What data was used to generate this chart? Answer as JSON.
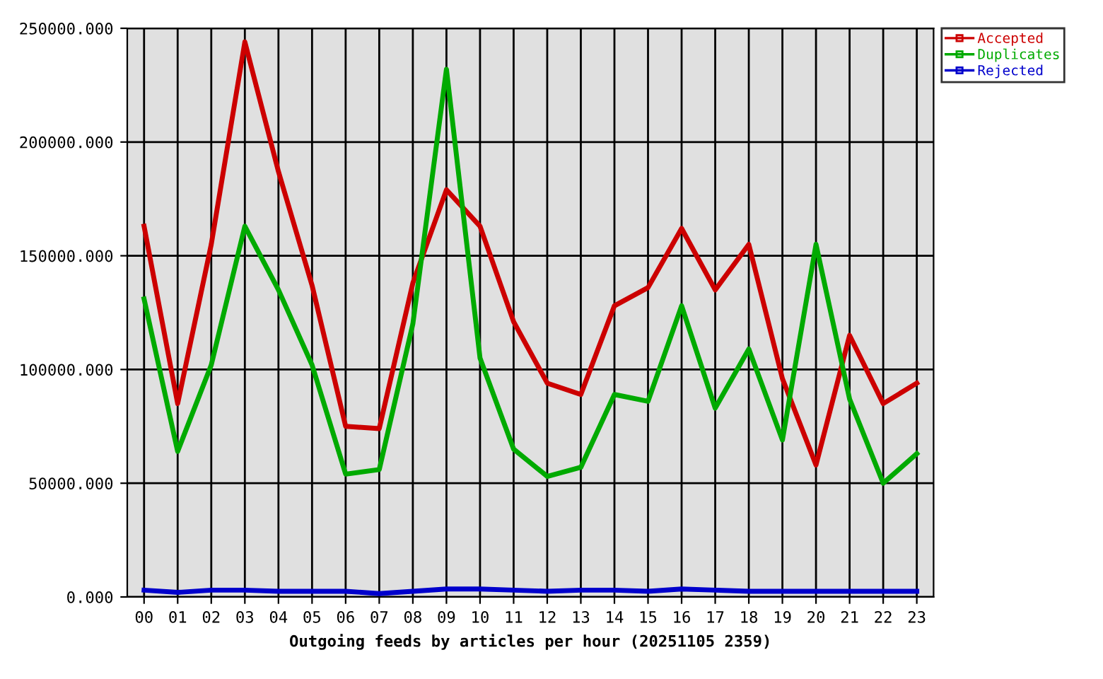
{
  "chart_data": {
    "type": "line",
    "xlabel": "Outgoing feeds by articles per hour (20251105 2359)",
    "categories": [
      "00",
      "01",
      "02",
      "03",
      "04",
      "05",
      "06",
      "07",
      "08",
      "09",
      "10",
      "11",
      "12",
      "13",
      "14",
      "15",
      "16",
      "17",
      "18",
      "19",
      "20",
      "21",
      "22",
      "23"
    ],
    "series": [
      {
        "name": "Accepted",
        "color": "#cc0000",
        "values": [
          163000,
          85000,
          155000,
          244000,
          187000,
          137000,
          75000,
          74000,
          138000,
          179000,
          163000,
          121000,
          94000,
          89000,
          128000,
          136000,
          162000,
          135000,
          155000,
          96000,
          58000,
          115000,
          85000,
          94000
        ]
      },
      {
        "name": "Duplicates",
        "color": "#00aa00",
        "values": [
          131000,
          64000,
          102000,
          163000,
          135000,
          102000,
          54000,
          56000,
          120000,
          232000,
          105000,
          65000,
          53000,
          57000,
          89000,
          86000,
          128000,
          83000,
          109000,
          69000,
          155000,
          87000,
          50000,
          63000
        ]
      },
      {
        "name": "Rejected",
        "color": "#0000cc",
        "values": [
          3000,
          2000,
          3000,
          3000,
          2500,
          2500,
          2500,
          1500,
          2500,
          3500,
          3500,
          3000,
          2500,
          3000,
          3000,
          2500,
          3500,
          3000,
          2500,
          2500,
          2500,
          2500,
          2500,
          2500
        ]
      }
    ],
    "ylim": [
      0,
      250000
    ],
    "yticks": [
      {
        "value": 0,
        "label": "0.000"
      },
      {
        "value": 50000,
        "label": "50000.000"
      },
      {
        "value": 100000,
        "label": "100000.000"
      },
      {
        "value": 150000,
        "label": "150000.000"
      },
      {
        "value": 200000,
        "label": "200000.000"
      },
      {
        "value": 250000,
        "label": "250000.000"
      }
    ],
    "grid": true,
    "legend": "top right"
  }
}
